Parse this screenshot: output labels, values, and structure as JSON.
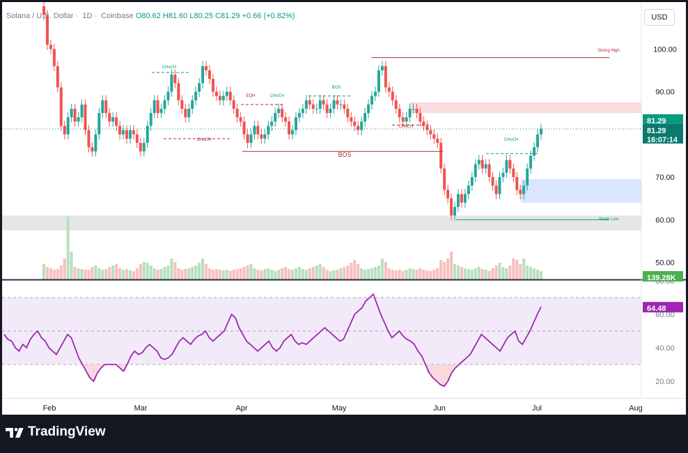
{
  "header": {
    "symbol": "Solana / U.S. Dollar",
    "interval": "1D",
    "exchange": "Coinbase",
    "ohlc_text": "O80.62  H81.60  L80.25  C81.29  +0.66 (+0.82%)"
  },
  "currency_label": "USD",
  "brand": "TradingView",
  "colors": {
    "up": "#26a69a",
    "down": "#ef5350",
    "up_volume": "#b7dfbd",
    "down_volume": "#f7bfbe",
    "rsi_line": "#9c27b0",
    "price_tag": "#089981",
    "bg": "#ffffff",
    "frame": "#131722"
  },
  "price_labels": {
    "last_price": "81.29",
    "countdown": "16:07:14",
    "volume": "139.28K",
    "rsi_value": "64.48"
  },
  "annotations": [
    {
      "text": "Strong High",
      "price": 98.0,
      "color": "#b22833"
    },
    {
      "text": "Weak Low",
      "price": 60.0,
      "color": "#089981"
    },
    {
      "text": "CHoCH",
      "price": 94.5,
      "color": "#089981"
    },
    {
      "text": "CHoCH",
      "price": 79.0,
      "color": "#b22833"
    },
    {
      "text": "EQH",
      "price": 87.0,
      "color": "#b22833"
    },
    {
      "text": "CHoCH",
      "price": 87.0,
      "color": "#089981"
    },
    {
      "text": "BOS",
      "price": 89.0,
      "color": "#089981"
    },
    {
      "text": "BOS",
      "price": 76.0,
      "color": "#b22833"
    },
    {
      "text": "CHoCH",
      "price": 82.2,
      "color": "#b22833"
    },
    {
      "text": "CHoCH",
      "price": 75.5,
      "color": "#089981"
    }
  ],
  "chart_data": {
    "type": "candlestick",
    "symbol": "SOLUSD",
    "timeframe": "1D",
    "x_ticks": [
      "Feb",
      "Mar",
      "Apr",
      "May",
      "Jun",
      "Jul",
      "Aug"
    ],
    "price_axis": {
      "ticks": [
        "100.00",
        "90.00",
        "80.00",
        "70.00",
        "60.00",
        "50.00"
      ],
      "range": [
        46,
        111
      ]
    },
    "rsi_axis": {
      "ticks": [
        "80.00",
        "60.00",
        "40.00",
        "20.00"
      ],
      "range": [
        10,
        80
      ],
      "overbought": 70,
      "oversold": 30,
      "mid": 50
    },
    "zones": [
      {
        "type": "supply",
        "from_price": 85.0,
        "to_price": 87.5
      },
      {
        "type": "demand",
        "from_price": 64.0,
        "to_price": 69.5
      },
      {
        "type": "gray",
        "from_price": 57.5,
        "to_price": 61.0
      }
    ],
    "close_series": [
      108,
      101,
      100,
      96,
      91,
      82,
      80,
      84,
      86,
      83,
      84,
      87,
      81,
      77,
      76,
      80,
      85,
      88,
      85,
      83,
      84,
      82,
      80,
      81,
      79,
      81,
      80,
      78,
      76,
      78,
      82,
      85,
      88,
      85,
      86,
      88,
      90,
      94,
      92,
      88,
      86,
      84,
      86,
      88,
      90,
      92,
      96,
      95,
      93,
      90,
      89,
      88,
      89,
      90,
      88,
      86,
      84,
      83,
      80,
      78,
      80,
      82,
      80,
      79,
      80,
      82,
      83,
      85,
      86,
      84,
      83,
      80,
      81,
      84,
      85,
      86,
      88,
      87,
      86,
      86,
      88,
      87,
      85,
      86,
      88,
      87,
      87,
      86,
      84,
      83,
      82,
      81,
      83,
      85,
      87,
      89,
      90,
      95,
      96,
      91,
      90,
      88,
      86,
      84,
      83,
      84,
      86,
      86,
      85,
      83,
      82,
      81,
      80,
      79,
      78,
      72,
      67,
      65,
      61,
      63,
      66,
      64,
      66,
      68,
      70,
      73,
      74,
      72,
      73,
      70,
      68,
      66,
      70,
      71,
      74,
      72,
      70,
      67,
      66,
      68,
      72,
      75,
      77,
      80,
      81.29
    ],
    "volume_series": [
      22,
      18,
      16,
      14,
      15,
      20,
      30,
      90,
      40,
      18,
      16,
      15,
      14,
      14,
      18,
      20,
      16,
      14,
      15,
      18,
      20,
      22,
      16,
      14,
      15,
      13,
      12,
      16,
      22,
      25,
      24,
      20,
      16,
      14,
      15,
      18,
      20,
      30,
      25,
      16,
      14,
      15,
      16,
      18,
      20,
      24,
      30,
      22,
      16,
      14,
      15,
      14,
      13,
      14,
      12,
      14,
      15,
      16,
      18,
      20,
      22,
      16,
      14,
      13,
      15,
      16,
      14,
      12,
      14,
      16,
      18,
      15,
      14,
      16,
      18,
      15,
      14,
      16,
      18,
      20,
      22,
      18,
      14,
      12,
      13,
      14,
      16,
      18,
      20,
      24,
      28,
      22,
      16,
      14,
      15,
      16,
      18,
      20,
      30,
      25,
      16,
      14,
      13,
      14,
      12,
      14,
      16,
      15,
      14,
      16,
      14,
      13,
      12,
      14,
      16,
      28,
      25,
      30,
      40,
      22,
      20,
      18,
      16,
      15,
      14,
      16,
      18,
      15,
      14,
      12,
      16,
      20,
      24,
      18,
      16,
      20,
      30,
      28,
      22,
      30,
      20,
      18,
      16,
      14,
      12
    ],
    "rsi_series": [
      48,
      45,
      44,
      40,
      38,
      42,
      40,
      45,
      48,
      50,
      46,
      44,
      40,
      38,
      36,
      40,
      44,
      48,
      46,
      40,
      34,
      30,
      26,
      22,
      20,
      25,
      28,
      30,
      30,
      30,
      30,
      28,
      26,
      30,
      35,
      38,
      36,
      37,
      40,
      42,
      40,
      38,
      34,
      33,
      34,
      36,
      40,
      44,
      46,
      44,
      42,
      45,
      47,
      48,
      50,
      46,
      44,
      46,
      48,
      50,
      55,
      60,
      58,
      52,
      48,
      44,
      42,
      40,
      38,
      40,
      42,
      44,
      40,
      38,
      40,
      44,
      46,
      48,
      44,
      42,
      43,
      42,
      44,
      46,
      48,
      50,
      52,
      50,
      48,
      46,
      44,
      45,
      50,
      55,
      60,
      62,
      64,
      68,
      70,
      72,
      66,
      60,
      55,
      50,
      46,
      48,
      50,
      47,
      45,
      44,
      42,
      38,
      35,
      30,
      25,
      22,
      20,
      18,
      17,
      20,
      25,
      28,
      30,
      32,
      34,
      36,
      40,
      44,
      48,
      46,
      44,
      42,
      40,
      38,
      42,
      46,
      48,
      50,
      44,
      42,
      46,
      50,
      55,
      60,
      64.48
    ],
    "sample_dates": {
      "last": "Jul 4"
    }
  }
}
